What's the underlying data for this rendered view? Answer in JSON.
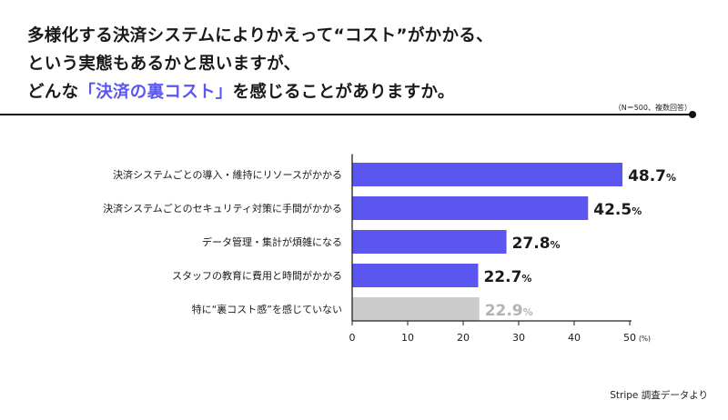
{
  "title": {
    "line1": "多様化する決済システムによりかえって“コスト”がかかる、",
    "line2": "という実態もあるかと思いますが、",
    "line3_before": "どんな",
    "line3_highlight": "「決済の裏コスト」",
    "line3_after": "を感じることがありますか。"
  },
  "note": "（N＝500、複数回答）",
  "source": "Stripe 調査データより",
  "colors": {
    "accent": "#5b56f0",
    "bar_main": "#5b56f0",
    "bar_other": "#cccccc",
    "label_other": "#b3b3b3"
  },
  "chart_data": {
    "type": "bar",
    "orientation": "horizontal",
    "categories": [
      "決済システムごとの導入・維持にリソースがかかる",
      "決済システムごとのセキュリティ対策に手間がかかる",
      "データ管理・集計が煩雑になる",
      "スタッフの教育に費用と時間がかかる",
      "特に“裏コスト感”を感じていない"
    ],
    "values": [
      48.7,
      42.5,
      27.8,
      22.7,
      22.9
    ],
    "value_labels": [
      "48.7",
      "42.5",
      "27.8",
      "22.7",
      "22.9"
    ],
    "unit_suffix": "%",
    "xlim": [
      0,
      50
    ],
    "xticks": [
      0,
      10,
      20,
      30,
      40,
      50
    ],
    "xtick_unit": "(%)",
    "grid": false
  }
}
